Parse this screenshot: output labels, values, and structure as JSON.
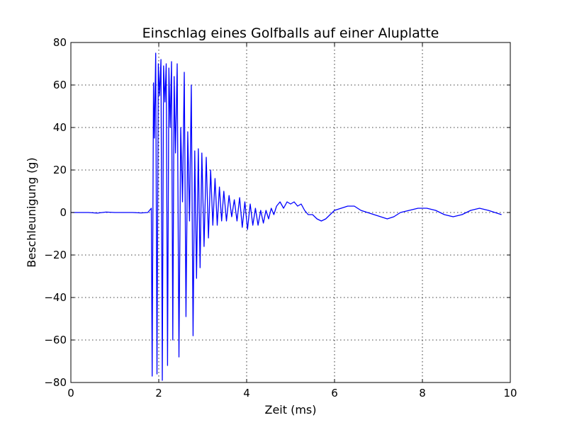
{
  "chart_data": {
    "type": "line",
    "title": "Einschlag eines Golfballs auf einer Aluplatte",
    "xlabel": "Zeit (ms)",
    "ylabel": "Beschleunigung (g)",
    "xlim": [
      0,
      10
    ],
    "ylim": [
      -80,
      80
    ],
    "xticks": [
      0,
      2,
      4,
      6,
      8,
      10
    ],
    "yticks": [
      -80,
      -60,
      -40,
      -20,
      0,
      20,
      40,
      60,
      80
    ],
    "xtick_labels": [
      "0",
      "2",
      "4",
      "6",
      "8",
      "10"
    ],
    "ytick_labels": [
      "−80",
      "−60",
      "−40",
      "−20",
      "0",
      "20",
      "40",
      "60",
      "80"
    ],
    "grid": true,
    "series": [
      {
        "color": "#0000ff",
        "x": [
          0.0,
          0.2,
          0.4,
          0.6,
          0.8,
          1.0,
          1.2,
          1.4,
          1.6,
          1.75,
          1.83,
          1.85,
          1.88,
          1.9,
          1.93,
          1.96,
          1.99,
          2.02,
          2.05,
          2.08,
          2.11,
          2.14,
          2.17,
          2.2,
          2.23,
          2.26,
          2.29,
          2.32,
          2.35,
          2.38,
          2.42,
          2.46,
          2.5,
          2.54,
          2.58,
          2.62,
          2.66,
          2.7,
          2.74,
          2.78,
          2.82,
          2.86,
          2.9,
          2.94,
          2.98,
          3.03,
          3.08,
          3.13,
          3.18,
          3.23,
          3.28,
          3.33,
          3.38,
          3.43,
          3.48,
          3.54,
          3.6,
          3.66,
          3.72,
          3.78,
          3.84,
          3.9,
          3.96,
          4.02,
          4.08,
          4.14,
          4.2,
          4.26,
          4.32,
          4.38,
          4.44,
          4.5,
          4.56,
          4.62,
          4.68,
          4.76,
          4.84,
          4.92,
          5.0,
          5.08,
          5.16,
          5.24,
          5.32,
          5.4,
          5.5,
          5.6,
          5.7,
          5.8,
          5.9,
          6.0,
          6.15,
          6.3,
          6.45,
          6.6,
          6.75,
          6.9,
          7.05,
          7.2,
          7.35,
          7.5,
          7.7,
          7.9,
          8.1,
          8.3,
          8.5,
          8.7,
          8.9,
          9.1,
          9.3,
          9.5,
          9.65,
          9.8
        ],
        "y": [
          0,
          0,
          0,
          -0.3,
          0.2,
          0,
          0,
          0,
          -0.2,
          0,
          2,
          -77,
          61,
          35,
          75,
          -76,
          70,
          55,
          72,
          -79,
          69,
          52,
          70,
          -72,
          68,
          40,
          71,
          -60,
          64,
          28,
          70,
          -68,
          40,
          5,
          66,
          -49,
          38,
          -4,
          60,
          -58,
          29,
          -31,
          30,
          -26,
          28,
          -16,
          26,
          -12,
          20,
          -6,
          16,
          -6,
          12,
          -4,
          10,
          -4,
          8,
          -2,
          6,
          -4,
          7,
          -7,
          5,
          -8,
          4,
          -6,
          2,
          -6,
          1,
          -5,
          1,
          -3,
          2,
          -1,
          3,
          5,
          2,
          5,
          4,
          5,
          3,
          4,
          1,
          -1,
          -1,
          -3,
          -4,
          -3,
          -1,
          1,
          2,
          3,
          3,
          1,
          0,
          -1,
          -2,
          -3,
          -2,
          0,
          1,
          2,
          2,
          1,
          -1,
          -2,
          -1,
          1,
          2,
          1,
          0,
          -1
        ]
      }
    ]
  }
}
